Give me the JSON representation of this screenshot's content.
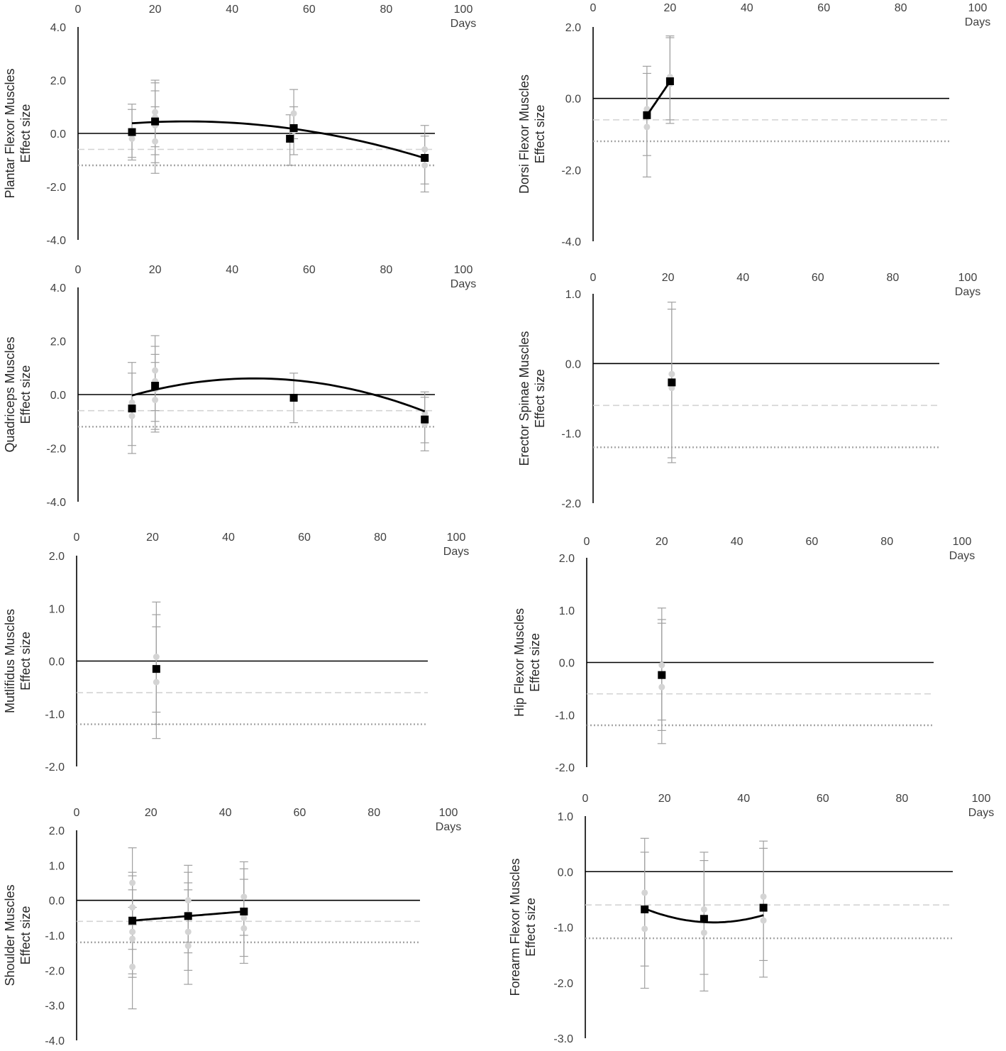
{
  "chart_data": [
    {
      "type": "scatter",
      "id": "plantar",
      "ylabel_line1": "Plantar Flexor Muscles",
      "ylabel_line2": "Effect size",
      "xlabel": "Days",
      "xticks": [
        "0",
        "20",
        "40",
        "60",
        "80",
        "100"
      ],
      "yticks": [
        "4.0",
        "2.0",
        "0.0",
        "-2.0",
        "-4.0"
      ],
      "xlim": [
        0,
        100
      ],
      "ylim": [
        -4,
        4
      ],
      "ref_lines": {
        "dashed": -0.6,
        "dotted": -1.2
      },
      "means": [
        {
          "x": 14,
          "y": 0.05
        },
        {
          "x": 20,
          "y": 0.45
        },
        {
          "x": 55,
          "y": -0.2
        },
        {
          "x": 56,
          "y": 0.2
        },
        {
          "x": 90,
          "y": -0.92
        }
      ],
      "studies": [
        {
          "x": 14,
          "y": 0.1,
          "lo": -1.0,
          "hi": 1.1
        },
        {
          "x": 14,
          "y": -0.2,
          "lo": -0.9,
          "hi": 0.9
        },
        {
          "x": 20,
          "y": 0.8,
          "lo": -0.5,
          "hi": 2.0
        },
        {
          "x": 20,
          "y": 0.3,
          "lo": -1.1,
          "hi": 1.6
        },
        {
          "x": 20,
          "y": -0.3,
          "lo": -1.5,
          "hi": 1.0
        },
        {
          "x": 20,
          "y": 0.6,
          "lo": -0.8,
          "hi": 1.9
        },
        {
          "x": 55,
          "y": -0.2,
          "lo": -1.2,
          "hi": 0.7
        },
        {
          "x": 56,
          "y": 0.75,
          "lo": -0.2,
          "hi": 1.65
        },
        {
          "x": 56,
          "y": 0.1,
          "lo": -0.8,
          "hi": 1.0
        },
        {
          "x": 90,
          "y": -0.6,
          "lo": -1.9,
          "hi": 0.3
        },
        {
          "x": 90,
          "y": -1.2,
          "lo": -2.2,
          "hi": -0.1
        }
      ],
      "fit": {
        "x0": 14,
        "x1": 90,
        "coef": [
          0.168,
          0.0202,
          -0.00036
        ]
      }
    },
    {
      "type": "scatter",
      "id": "dorsi",
      "ylabel_line1": "Dorsi Flexor Muscles",
      "ylabel_line2": "Effect size",
      "xlabel": "Days",
      "xticks": [
        "0",
        "20",
        "40",
        "60",
        "80",
        "100"
      ],
      "yticks": [
        "2.0",
        "0.0",
        "-2.0",
        "-4.0"
      ],
      "xlim": [
        0,
        100
      ],
      "ylim": [
        -4,
        2
      ],
      "ref_lines": {
        "dashed": -0.6,
        "dotted": -1.2
      },
      "means": [
        {
          "x": 14,
          "y": -0.47
        },
        {
          "x": 20,
          "y": 0.48
        }
      ],
      "studies": [
        {
          "x": 14,
          "y": -0.8,
          "lo": -2.2,
          "hi": 0.9
        },
        {
          "x": 14,
          "y": -0.3,
          "lo": -1.6,
          "hi": 0.7
        },
        {
          "x": 20,
          "y": 0.4,
          "lo": -0.7,
          "hi": 1.7
        },
        {
          "x": 20,
          "y": 0.6,
          "lo": -0.6,
          "hi": 1.75
        }
      ],
      "fit": {
        "x0": 14,
        "x1": 20,
        "coef": [
          -2.687,
          0.158,
          0
        ]
      }
    },
    {
      "type": "scatter",
      "id": "quadriceps",
      "ylabel_line1": "Quadriceps Muscles",
      "ylabel_line2": "Effect size",
      "xlabel": "Days",
      "xticks": [
        "0",
        "20",
        "40",
        "60",
        "80",
        "100"
      ],
      "yticks": [
        "4.0",
        "2.0",
        "0.0",
        "-2.0",
        "-4.0"
      ],
      "xlim": [
        0,
        100
      ],
      "ylim": [
        -4,
        4
      ],
      "ref_lines": {
        "dashed": -0.6,
        "dotted": -1.2
      },
      "means": [
        {
          "x": 14,
          "y": -0.52
        },
        {
          "x": 20,
          "y": 0.33
        },
        {
          "x": 56,
          "y": -0.12
        },
        {
          "x": 90,
          "y": -0.93
        }
      ],
      "studies": [
        {
          "x": 14,
          "y": -0.8,
          "lo": -2.2,
          "hi": 1.2
        },
        {
          "x": 14,
          "y": -0.3,
          "lo": -1.9,
          "hi": 0.8
        },
        {
          "x": 20,
          "y": 0.9,
          "lo": -0.6,
          "hi": 2.2
        },
        {
          "x": 20,
          "y": 0.5,
          "lo": -1.0,
          "hi": 1.8
        },
        {
          "x": 20,
          "y": -0.2,
          "lo": -1.4,
          "hi": 1.2
        },
        {
          "x": 20,
          "y": 0.2,
          "lo": -1.3,
          "hi": 1.5
        },
        {
          "x": 56,
          "y": -0.12,
          "lo": -1.05,
          "hi": 0.8
        },
        {
          "x": 90,
          "y": -0.7,
          "lo": -1.8,
          "hi": 0.1
        },
        {
          "x": 90,
          "y": -1.1,
          "lo": -2.1,
          "hi": -0.1
        }
      ],
      "fit": {
        "x0": 14,
        "x1": 90,
        "coef": [
          -0.719,
          0.0577,
          -0.00063
        ]
      }
    },
    {
      "type": "scatter",
      "id": "erector",
      "ylabel_line1": "Erector Spinae Muscles",
      "ylabel_line2": "Effect size",
      "xlabel": "Days",
      "xticks": [
        "0",
        "20",
        "40",
        "60",
        "80",
        "100"
      ],
      "yticks": [
        "1.0",
        "0.0",
        "-1.0",
        "-2.0"
      ],
      "xlim": [
        0,
        100
      ],
      "ylim": [
        -2,
        1
      ],
      "ref_lines": {
        "dashed": -0.6,
        "dotted": -1.2
      },
      "means": [
        {
          "x": 21,
          "y": -0.27
        }
      ],
      "studies": [
        {
          "x": 21,
          "y": -0.15,
          "lo": -1.35,
          "hi": 0.88
        },
        {
          "x": 21,
          "y": -0.35,
          "lo": -1.42,
          "hi": 0.78
        }
      ],
      "fit": null
    },
    {
      "type": "scatter",
      "id": "multifidus",
      "ylabel_line1": "Mutlifidus Muscles",
      "ylabel_line2": "Effect size",
      "xlabel": "Days",
      "xticks": [
        "0",
        "20",
        "40",
        "60",
        "80",
        "100"
      ],
      "yticks": [
        "2.0",
        "1.0",
        "0.0",
        "-1.0",
        "-2.0"
      ],
      "xlim": [
        0,
        100
      ],
      "ylim": [
        -2,
        2
      ],
      "ref_lines": {
        "dashed": -0.6,
        "dotted": -1.2
      },
      "means": [
        {
          "x": 21,
          "y": -0.15
        }
      ],
      "studies": [
        {
          "x": 21,
          "y": 0.08,
          "lo": -1.2,
          "hi": 1.12
        },
        {
          "x": 21,
          "y": -0.4,
          "lo": -1.47,
          "hi": 0.65
        },
        {
          "x": 21,
          "y": -0.15,
          "lo": -0.97,
          "hi": 0.88
        }
      ],
      "fit": null
    },
    {
      "type": "scatter",
      "id": "hipflexor",
      "ylabel_line1": "Hip Flexor Muscles",
      "ylabel_line2": "Effect size",
      "xlabel": "Days",
      "xticks": [
        "0",
        "20",
        "40",
        "60",
        "80",
        "100"
      ],
      "yticks": [
        "2.0",
        "1.0",
        "0.0",
        "-1.0",
        "-2.0"
      ],
      "xlim": [
        0,
        100
      ],
      "ylim": [
        -2,
        2
      ],
      "ref_lines": {
        "dashed": -0.6,
        "dotted": -1.2
      },
      "means": [
        {
          "x": 20,
          "y": -0.24
        }
      ],
      "studies": [
        {
          "x": 20,
          "y": -0.05,
          "lo": -1.1,
          "hi": 1.04
        },
        {
          "x": 20,
          "y": -0.47,
          "lo": -1.55,
          "hi": 0.82
        },
        {
          "x": 20,
          "y": -0.25,
          "lo": -1.3,
          "hi": 0.75
        }
      ],
      "fit": null
    },
    {
      "type": "scatter",
      "id": "shoulder",
      "ylabel_line1": "Shoulder Muscles",
      "ylabel_line2": "Effect size",
      "xlabel": "Days",
      "xticks": [
        "0",
        "20",
        "40",
        "60",
        "80",
        "100"
      ],
      "yticks": [
        "2.0",
        "1.0",
        "0.0",
        "-1.0",
        "-2.0",
        "-3.0",
        "-4.0"
      ],
      "xlim": [
        0,
        100
      ],
      "ylim": [
        -4,
        2
      ],
      "ref_lines": {
        "dashed": -0.6,
        "dotted": -1.2
      },
      "means": [
        {
          "x": 15,
          "y": -0.58
        },
        {
          "x": 30,
          "y": -0.45
        },
        {
          "x": 45,
          "y": -0.32
        }
      ],
      "studies": [
        {
          "x": 15,
          "y": 0.5,
          "lo": -0.7,
          "hi": 1.5
        },
        {
          "x": 15,
          "y": -0.2,
          "lo": -1.4,
          "hi": 0.8
        },
        {
          "x": 15,
          "y": -0.9,
          "lo": -2.2,
          "hi": 0.3
        },
        {
          "x": 15,
          "y": -1.1,
          "lo": -3.1,
          "hi": 0.7
        },
        {
          "x": 15,
          "y": -1.9,
          "lo": -2.1,
          "hi": -0.2
        },
        {
          "x": 30,
          "y": 0.0,
          "lo": -1.2,
          "hi": 1.0
        },
        {
          "x": 30,
          "y": -0.4,
          "lo": -1.5,
          "hi": 0.8
        },
        {
          "x": 30,
          "y": -0.9,
          "lo": -2.4,
          "hi": 0.5
        },
        {
          "x": 30,
          "y": -1.3,
          "lo": -2.0,
          "hi": 0.3
        },
        {
          "x": 45,
          "y": 0.1,
          "lo": -1.0,
          "hi": 1.1
        },
        {
          "x": 45,
          "y": -0.5,
          "lo": -1.6,
          "hi": 0.6
        },
        {
          "x": 45,
          "y": -0.8,
          "lo": -1.8,
          "hi": 0.9
        }
      ],
      "fit": {
        "x0": 15,
        "x1": 45,
        "coef": [
          -0.71,
          0.00867,
          0
        ]
      }
    },
    {
      "type": "scatter",
      "id": "forearm",
      "ylabel_line1": "Forearm Flexor Muscles",
      "ylabel_line2": "Effect size",
      "xlabel": "Days",
      "xticks": [
        "0",
        "20",
        "40",
        "60",
        "80",
        "100"
      ],
      "yticks": [
        "1.0",
        "0.0",
        "-1.0",
        "-2.0",
        "-3.0"
      ],
      "xlim": [
        0,
        100
      ],
      "ylim": [
        -3,
        1
      ],
      "ref_lines": {
        "dashed": -0.6,
        "dotted": -1.2
      },
      "means": [
        {
          "x": 15,
          "y": -0.68
        },
        {
          "x": 30,
          "y": -0.85
        },
        {
          "x": 45,
          "y": -0.65
        }
      ],
      "studies": [
        {
          "x": 15,
          "y": -0.38,
          "lo": -1.7,
          "hi": 0.6
        },
        {
          "x": 15,
          "y": -1.03,
          "lo": -2.1,
          "hi": 0.35
        },
        {
          "x": 30,
          "y": -0.68,
          "lo": -1.85,
          "hi": 0.35
        },
        {
          "x": 30,
          "y": -1.1,
          "lo": -2.15,
          "hi": 0.2
        },
        {
          "x": 45,
          "y": -0.45,
          "lo": -1.6,
          "hi": 0.55
        },
        {
          "x": 45,
          "y": -0.88,
          "lo": -1.9,
          "hi": 0.42
        }
      ],
      "fit": {
        "x0": 15,
        "x1": 45,
        "coef": [
          -0.05,
          -0.0533,
          0.000822
        ]
      }
    }
  ]
}
